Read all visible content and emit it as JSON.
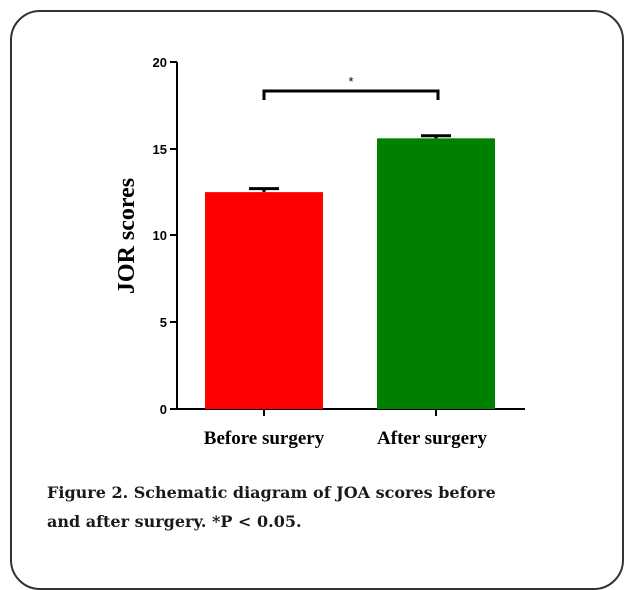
{
  "chart_data": {
    "type": "bar",
    "categories": [
      "Before surgery",
      "After surgery"
    ],
    "values": [
      12.5,
      15.6
    ],
    "errors": [
      0.2,
      0.15
    ],
    "colors": [
      "#ff0000",
      "#008000"
    ],
    "ylabel": "JOR scores",
    "xlabel": "",
    "ylim": [
      0,
      20
    ],
    "yticks": [
      "0",
      "5",
      "10",
      "15",
      "20"
    ],
    "significance": "*"
  },
  "caption": {
    "line1": "Figure 2. Schematic diagram of JOA scores before",
    "line2": "and after surgery. *P < 0.05."
  }
}
